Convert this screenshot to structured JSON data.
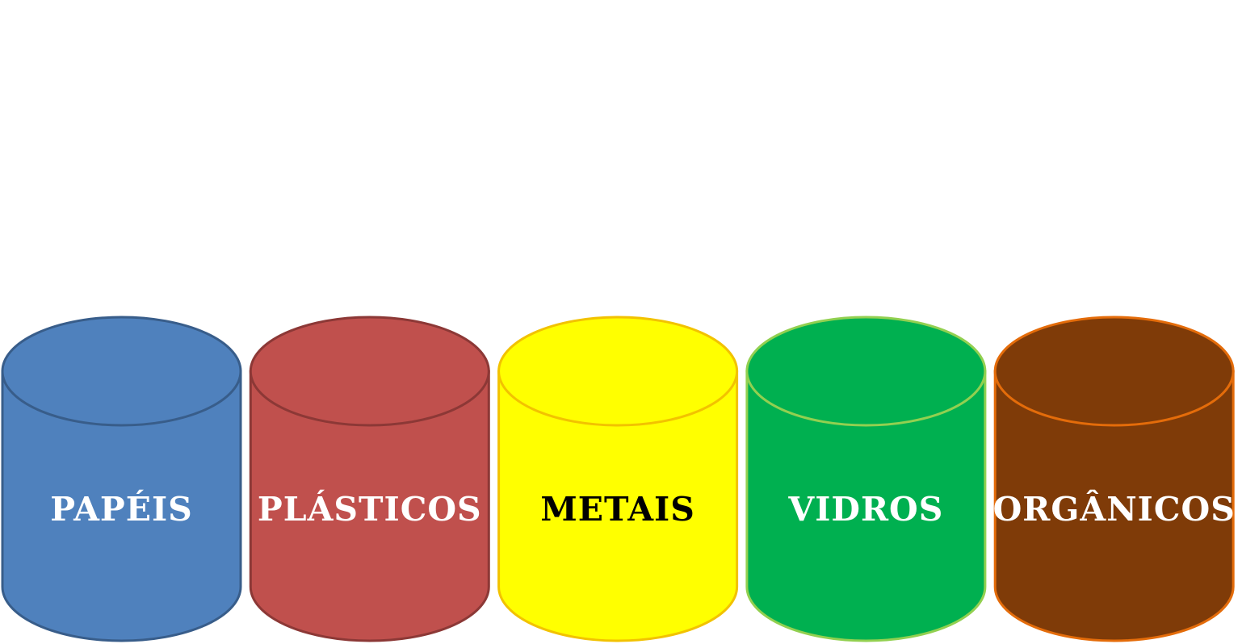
{
  "bins": [
    {
      "label": "PAPÉIS",
      "fill": "#4F81BD",
      "stroke": "#385D8A",
      "text_color": "#FFFFFF"
    },
    {
      "label": "PLÁSTICOS",
      "fill": "#C0504D",
      "stroke": "#8C3836",
      "text_color": "#FFFFFF"
    },
    {
      "label": "METAIS",
      "fill": "#FFFF00",
      "stroke": "#F2C200",
      "text_color": "#000000"
    },
    {
      "label": "VIDROS",
      "fill": "#00B050",
      "stroke": "#92D050",
      "text_color": "#FFFFFF"
    },
    {
      "label": "ORGÂNICOS",
      "fill": "#7F3B08",
      "stroke": "#E46C0A",
      "text_color": "#FFFFFF"
    }
  ]
}
